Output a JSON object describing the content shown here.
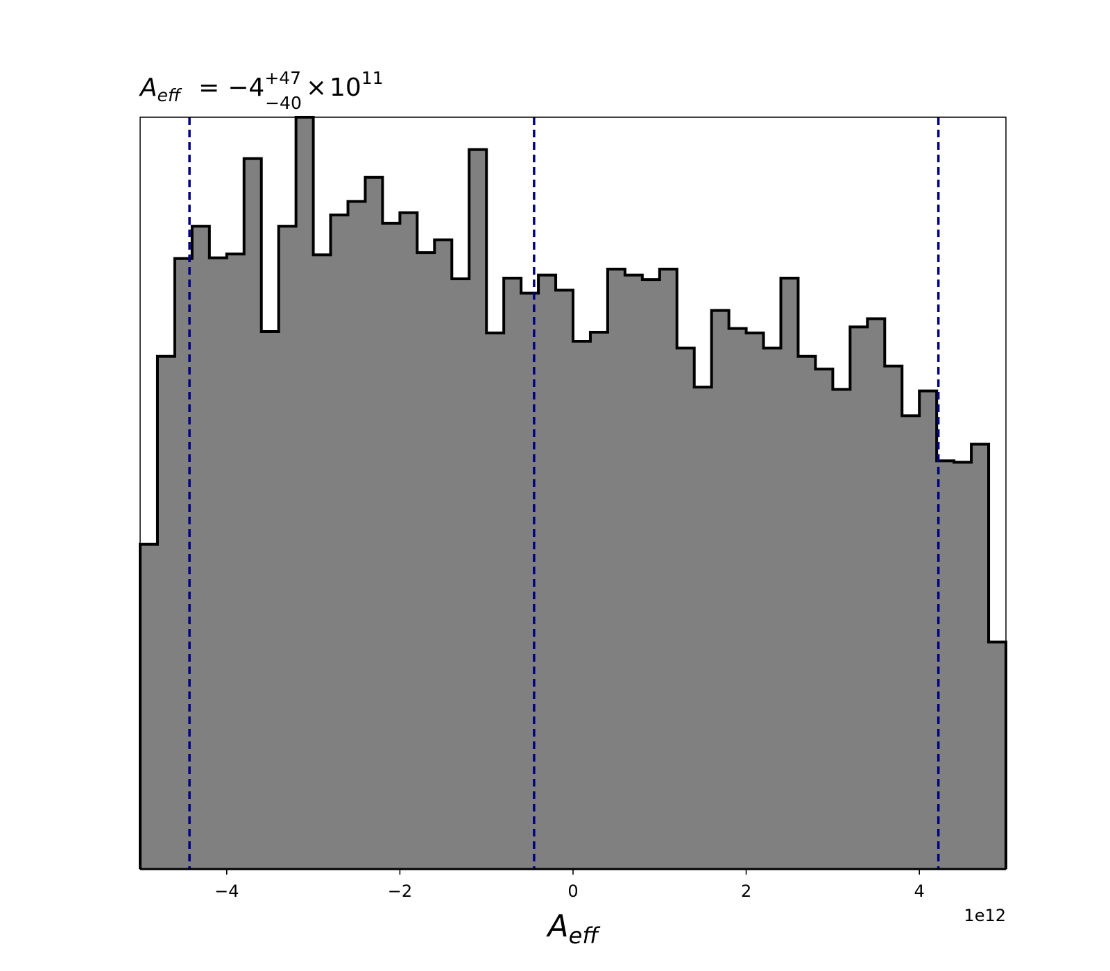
{
  "chart_data": {
    "type": "histogram",
    "title": {
      "symbol": "A",
      "symbol_subscript": "eff",
      "equals": "=",
      "value": "−4",
      "upper_error": "+47",
      "lower_error": "−40",
      "times": "×",
      "base": "10",
      "exponent": "11"
    },
    "xlabel": {
      "symbol": "A",
      "subscript": "eff"
    },
    "ylabel": "",
    "x_offset_text": "1e12",
    "x_scale_factor": 1000000000000.0,
    "xlim": [
      -5.0,
      5.0
    ],
    "ylim": [
      0,
      1.0
    ],
    "y_ticks_visible": false,
    "grid": false,
    "xticks": [
      {
        "value": -4,
        "label": "−4"
      },
      {
        "value": -2,
        "label": "−2"
      },
      {
        "value": 0,
        "label": "0"
      },
      {
        "value": 2,
        "label": "2"
      },
      {
        "value": 4,
        "label": "4"
      }
    ],
    "bin_start": -5.0,
    "bin_width": 0.2,
    "counts": [
      0.432,
      0.682,
      0.812,
      0.855,
      0.813,
      0.818,
      0.945,
      0.715,
      0.855,
      1.0,
      0.817,
      0.87,
      0.888,
      0.92,
      0.859,
      0.873,
      0.82,
      0.837,
      0.785,
      0.957,
      0.713,
      0.786,
      0.766,
      0.79,
      0.77,
      0.702,
      0.714,
      0.798,
      0.79,
      0.784,
      0.798,
      0.693,
      0.641,
      0.743,
      0.719,
      0.713,
      0.693,
      0.786,
      0.682,
      0.665,
      0.638,
      0.721,
      0.732,
      0.669,
      0.603,
      0.636,
      0.543,
      0.541,
      0.565,
      0.302
    ],
    "quantile_lines": [
      {
        "x": -4.43,
        "label": "16th percentile"
      },
      {
        "x": -0.45,
        "label": "median"
      },
      {
        "x": 4.22,
        "label": "84th percentile"
      }
    ],
    "colors": {
      "fill": "#808080",
      "edge": "#000000",
      "quantile": "#000080"
    }
  }
}
